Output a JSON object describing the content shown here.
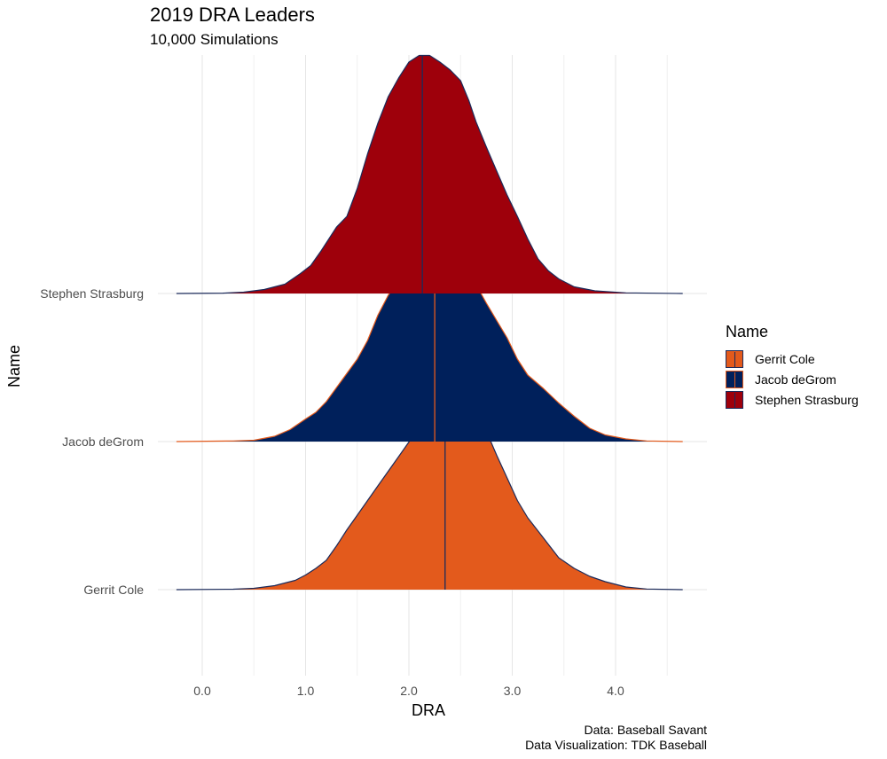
{
  "title": "2019 DRA Leaders",
  "subtitle": "10,000 Simulations",
  "caption_lines": [
    "Data: Baseball Savant",
    "Data Visualization: TDK Baseball"
  ],
  "chart_data": {
    "type": "ridgeline",
    "xlabel": "DRA",
    "ylabel": "Name",
    "xlim": [
      -0.25,
      4.65
    ],
    "x_ticks": [
      0.0,
      1.0,
      2.0,
      3.0,
      4.0
    ],
    "x_tick_labels": [
      "0.0",
      "1.0",
      "2.0",
      "3.0",
      "4.0"
    ],
    "categories": [
      "Gerrit Cole",
      "Jacob deGrom",
      "Stephen Strasburg"
    ],
    "grid": true,
    "legend": {
      "title": "Name",
      "position": "right",
      "entries": [
        "Gerrit Cole",
        "Jacob deGrom",
        "Stephen Strasburg"
      ]
    },
    "series": [
      {
        "name": "Gerrit Cole",
        "fill": "#E35A1C",
        "outline": "#1B2A5A",
        "median_line": "#1B2A5A",
        "median": 2.35,
        "density": [
          [
            -0.25,
            0
          ],
          [
            0.3,
            0.003
          ],
          [
            0.5,
            0.01
          ],
          [
            0.7,
            0.03
          ],
          [
            0.9,
            0.07
          ],
          [
            1.0,
            0.11
          ],
          [
            1.1,
            0.16
          ],
          [
            1.2,
            0.22
          ],
          [
            1.3,
            0.33
          ],
          [
            1.4,
            0.45
          ],
          [
            1.5,
            0.56
          ],
          [
            1.6,
            0.67
          ],
          [
            1.7,
            0.78
          ],
          [
            1.8,
            0.89
          ],
          [
            1.9,
            1.0
          ],
          [
            2.0,
            1.11
          ],
          [
            2.1,
            1.23
          ],
          [
            2.2,
            1.34
          ],
          [
            2.3,
            1.45
          ],
          [
            2.35,
            1.49
          ],
          [
            2.42,
            1.51
          ],
          [
            2.48,
            1.47
          ],
          [
            2.55,
            1.38
          ],
          [
            2.65,
            1.32
          ],
          [
            2.75,
            1.19
          ],
          [
            2.85,
            1.01
          ],
          [
            2.95,
            0.84
          ],
          [
            3.05,
            0.67
          ],
          [
            3.15,
            0.54
          ],
          [
            3.3,
            0.39
          ],
          [
            3.45,
            0.24
          ],
          [
            3.6,
            0.16
          ],
          [
            3.75,
            0.1
          ],
          [
            3.9,
            0.06
          ],
          [
            4.1,
            0.02
          ],
          [
            4.3,
            0.005
          ],
          [
            4.65,
            0
          ]
        ]
      },
      {
        "name": "Jacob deGrom",
        "fill": "#00205B",
        "outline": "#E35A1C",
        "median_line": "#E35A1C",
        "median": 2.25,
        "density": [
          [
            -0.25,
            0
          ],
          [
            0.3,
            0.005
          ],
          [
            0.5,
            0.01
          ],
          [
            0.7,
            0.04
          ],
          [
            0.85,
            0.09
          ],
          [
            1.0,
            0.17
          ],
          [
            1.1,
            0.22
          ],
          [
            1.2,
            0.3
          ],
          [
            1.35,
            0.46
          ],
          [
            1.5,
            0.62
          ],
          [
            1.6,
            0.76
          ],
          [
            1.7,
            0.95
          ],
          [
            1.8,
            1.1
          ],
          [
            1.9,
            1.22
          ],
          [
            2.0,
            1.3
          ],
          [
            2.1,
            1.35
          ],
          [
            2.2,
            1.45
          ],
          [
            2.25,
            1.5
          ],
          [
            2.3,
            1.47
          ],
          [
            2.38,
            1.45
          ],
          [
            2.48,
            1.39
          ],
          [
            2.6,
            1.25
          ],
          [
            2.75,
            1.04
          ],
          [
            2.85,
            0.91
          ],
          [
            2.95,
            0.78
          ],
          [
            3.05,
            0.62
          ],
          [
            3.15,
            0.5
          ],
          [
            3.3,
            0.4
          ],
          [
            3.45,
            0.29
          ],
          [
            3.6,
            0.19
          ],
          [
            3.75,
            0.1
          ],
          [
            3.9,
            0.05
          ],
          [
            4.1,
            0.02
          ],
          [
            4.3,
            0.005
          ],
          [
            4.65,
            0
          ]
        ]
      },
      {
        "name": "Stephen Strasburg",
        "fill": "#9E000B",
        "outline": "#1B2A5A",
        "median_line": "#1B2A5A",
        "median": 2.13,
        "density": [
          [
            -0.25,
            0
          ],
          [
            0.2,
            0.003
          ],
          [
            0.4,
            0.01
          ],
          [
            0.6,
            0.03
          ],
          [
            0.8,
            0.07
          ],
          [
            0.95,
            0.15
          ],
          [
            1.05,
            0.21
          ],
          [
            1.15,
            0.32
          ],
          [
            1.3,
            0.5
          ],
          [
            1.4,
            0.58
          ],
          [
            1.5,
            0.79
          ],
          [
            1.6,
            1.05
          ],
          [
            1.7,
            1.28
          ],
          [
            1.8,
            1.48
          ],
          [
            1.9,
            1.62
          ],
          [
            2.0,
            1.74
          ],
          [
            2.1,
            1.79
          ],
          [
            2.2,
            1.79
          ],
          [
            2.3,
            1.74
          ],
          [
            2.4,
            1.68
          ],
          [
            2.5,
            1.6
          ],
          [
            2.58,
            1.45
          ],
          [
            2.65,
            1.29
          ],
          [
            2.75,
            1.1
          ],
          [
            2.85,
            0.92
          ],
          [
            2.95,
            0.74
          ],
          [
            3.05,
            0.58
          ],
          [
            3.15,
            0.41
          ],
          [
            3.25,
            0.26
          ],
          [
            3.35,
            0.17
          ],
          [
            3.45,
            0.11
          ],
          [
            3.6,
            0.05
          ],
          [
            3.8,
            0.02
          ],
          [
            4.1,
            0.005
          ],
          [
            4.65,
            0
          ]
        ]
      }
    ]
  }
}
